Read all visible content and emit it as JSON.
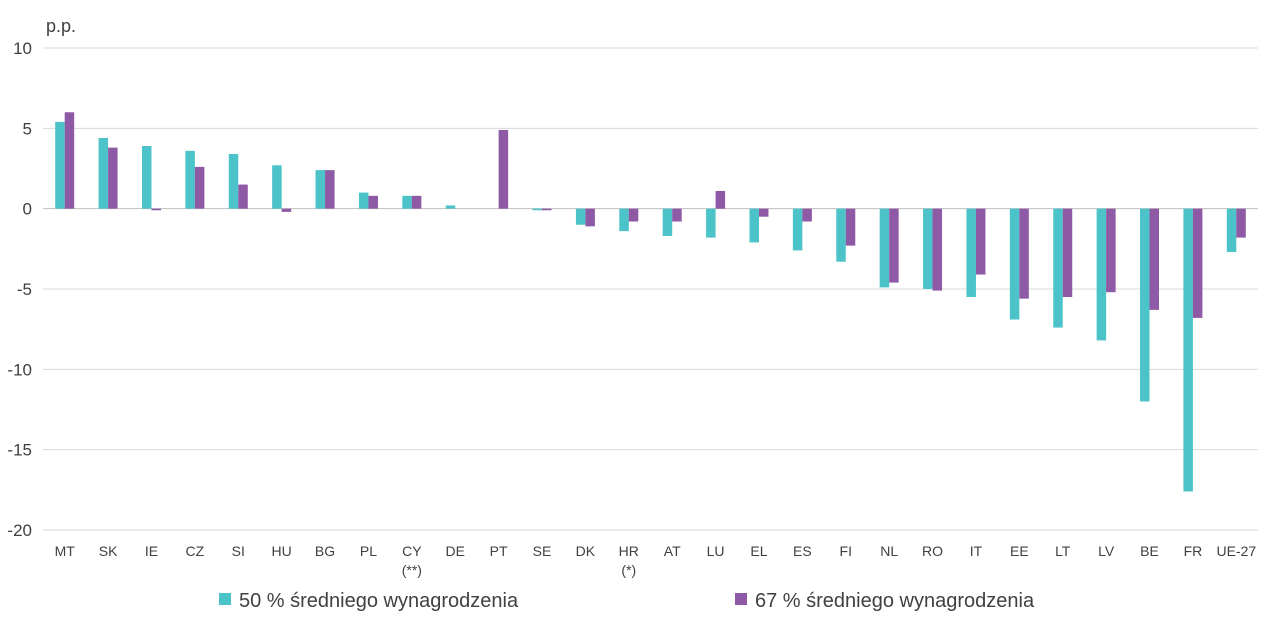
{
  "chart_data": {
    "type": "bar",
    "ylabel": "p.p.",
    "ylim": [
      -20,
      10
    ],
    "yticks": [
      10,
      5,
      0,
      -5,
      -10,
      -15,
      -20
    ],
    "grid": true,
    "legend_position": "bottom",
    "categories": [
      "MT",
      "SK",
      "IE",
      "CZ",
      "SI",
      "HU",
      "BG",
      "PL",
      "CY\n(**)",
      "DE",
      "PT",
      "SE",
      "DK",
      "HR\n(*)",
      "AT",
      "LU",
      "EL",
      "ES",
      "FI",
      "NL",
      "RO",
      "IT",
      "EE",
      "LT",
      "LV",
      "BE",
      "FR",
      "UE-27"
    ],
    "series": [
      {
        "name": "50 % średniego wynagrodzenia",
        "color": "#4bc3c8",
        "values": [
          5.4,
          4.4,
          3.9,
          3.6,
          3.4,
          2.7,
          2.4,
          1.0,
          0.8,
          0.2,
          0.0,
          -0.1,
          -1.0,
          -1.4,
          -1.7,
          -1.8,
          -2.1,
          -2.6,
          -3.3,
          -4.9,
          -5.0,
          -5.5,
          -6.9,
          -7.4,
          -8.2,
          -12.0,
          -17.6,
          -2.7
        ]
      },
      {
        "name": "67 % średniego wynagrodzenia",
        "color": "#8f5aa5",
        "values": [
          6.0,
          3.8,
          -0.1,
          2.6,
          1.5,
          -0.2,
          2.4,
          0.8,
          0.8,
          0.0,
          4.9,
          -0.1,
          -1.1,
          -0.8,
          -0.8,
          1.1,
          -0.5,
          -0.8,
          -2.3,
          -4.6,
          -5.1,
          -4.1,
          -5.6,
          -5.5,
          -5.2,
          -6.3,
          -6.8,
          -1.8
        ]
      }
    ]
  }
}
